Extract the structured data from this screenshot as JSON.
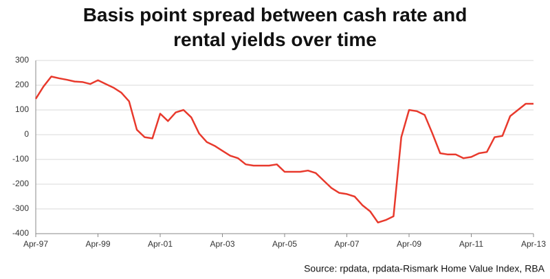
{
  "chart_data": {
    "type": "line",
    "title": "Basis point spread between cash rate and rental yields over time",
    "source": "Source: rpdata, rpdata-Rismark Home Value Index, RBA",
    "categories": [
      "Apr-97",
      null,
      null,
      null,
      null,
      null,
      null,
      null,
      "Apr-99",
      null,
      null,
      null,
      null,
      null,
      null,
      null,
      "Apr-01",
      null,
      null,
      null,
      null,
      null,
      null,
      null,
      "Apr-03",
      null,
      null,
      null,
      null,
      null,
      null,
      null,
      "Apr-05",
      null,
      null,
      null,
      null,
      null,
      null,
      null,
      "Apr-07",
      null,
      null,
      null,
      null,
      null,
      null,
      null,
      "Apr-09",
      null,
      null,
      null,
      null,
      null,
      null,
      null,
      "Apr-11",
      null,
      null,
      null,
      null,
      null,
      null,
      null,
      "Apr-13"
    ],
    "values": [
      145,
      195,
      235,
      228,
      222,
      215,
      213,
      205,
      220,
      205,
      190,
      170,
      135,
      20,
      -10,
      -15,
      85,
      55,
      90,
      100,
      70,
      5,
      -30,
      -45,
      -65,
      -85,
      -95,
      -120,
      -125,
      -125,
      -125,
      -120,
      -150,
      -150,
      -150,
      -145,
      -155,
      -185,
      -215,
      -235,
      -240,
      -250,
      -285,
      -310,
      -355,
      -345,
      -330,
      -10,
      100,
      95,
      80,
      5,
      -75,
      -80,
      -80,
      -95,
      -90,
      -75,
      -70,
      -10,
      -5,
      75,
      100,
      125,
      125
    ],
    "color": "#e8392c",
    "ylim": [
      -400,
      300
    ],
    "yticks": [
      -400,
      -300,
      -200,
      -100,
      0,
      100,
      200,
      300
    ],
    "grid": true
  }
}
